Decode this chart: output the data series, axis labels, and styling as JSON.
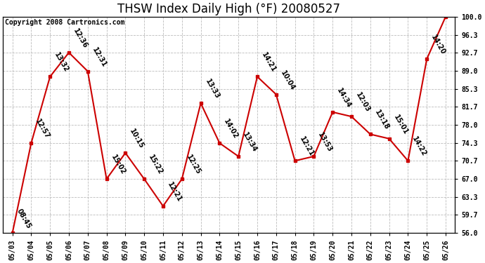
{
  "title": "THSW Index Daily High (°F) 20080527",
  "copyright": "Copyright 2008 Cartronics.com",
  "x_labels": [
    "05/03",
    "05/04",
    "05/05",
    "05/06",
    "05/07",
    "05/08",
    "05/09",
    "05/10",
    "05/11",
    "05/12",
    "05/13",
    "05/14",
    "05/15",
    "05/16",
    "05/17",
    "05/18",
    "05/19",
    "05/20",
    "05/21",
    "05/22",
    "05/23",
    "05/24",
    "05/25",
    "05/26"
  ],
  "y_values": [
    56.0,
    74.3,
    87.8,
    92.7,
    88.9,
    67.0,
    72.3,
    67.0,
    61.5,
    67.0,
    82.4,
    74.3,
    71.6,
    87.8,
    84.2,
    70.7,
    71.6,
    80.6,
    79.7,
    76.1,
    75.2,
    70.7,
    91.4,
    100.0
  ],
  "time_labels": [
    "08:45",
    "12:57",
    "13:32",
    "12:36",
    "12:31",
    "15:02",
    "10:15",
    "15:22",
    "12:21",
    "12:25",
    "13:33",
    "14:02",
    "13:34",
    "14:21",
    "10:04",
    "12:21",
    "13:53",
    "14:34",
    "12:03",
    "13:18",
    "15:01",
    "14:22",
    "14:20",
    ""
  ],
  "y_min": 56.0,
  "y_max": 100.0,
  "y_ticks": [
    56.0,
    59.7,
    63.3,
    67.0,
    70.7,
    74.3,
    78.0,
    81.7,
    85.3,
    89.0,
    92.7,
    96.3,
    100.0
  ],
  "line_color": "#cc0000",
  "marker_color": "#cc0000",
  "background_color": "#ffffff",
  "plot_bg_color": "#ffffff",
  "grid_color": "#bbbbbb",
  "title_fontsize": 12,
  "copyright_fontsize": 7,
  "annotation_fontsize": 7,
  "tick_fontsize": 7
}
